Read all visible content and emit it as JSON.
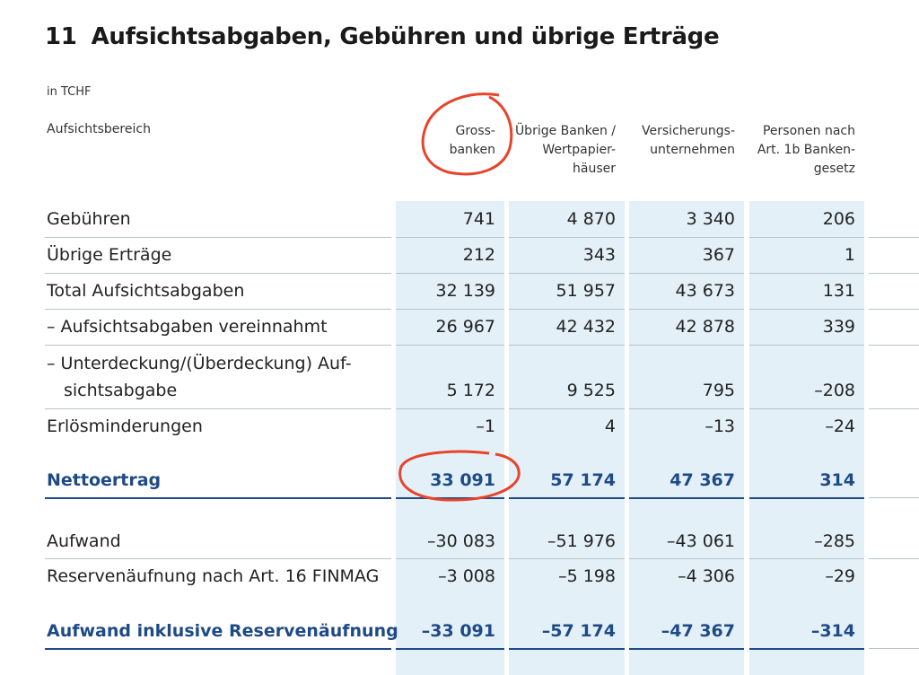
{
  "title": {
    "number": "11",
    "text": "Aufsichtsabgaben, Gebühren und übrige Erträge"
  },
  "unit": "in TCHF",
  "row_header_label": "Aufsichtsbereich",
  "columns": [
    "Gross-\nbanken",
    "Übrige Banken /\nWertpapier-\nhäuser",
    "Versicherungs-\nunternehmen",
    "Personen nach\nArt. 1b Banken-\ngesetz"
  ],
  "rows": [
    {
      "label": "Gebühren",
      "values": [
        "741",
        "4 870",
        "3 340",
        "206"
      ]
    },
    {
      "label": "Übrige Erträge",
      "values": [
        "212",
        "343",
        "367",
        "1"
      ]
    },
    {
      "label": "Total Aufsichtsabgaben",
      "values": [
        "32 139",
        "51 957",
        "43 673",
        "131"
      ]
    },
    {
      "label": "–  Aufsichtsabgaben vereinnahmt",
      "values": [
        "26 967",
        "42 432",
        "42 878",
        "339"
      ]
    },
    {
      "label": "–  Unterdeckung/(Überdeckung) Auf-",
      "label2": "sichtsabgabe",
      "values": [
        "5 172",
        "9 525",
        "795",
        "–208"
      ]
    },
    {
      "label": "Erlösminderungen",
      "values": [
        "–1",
        "4",
        "–13",
        "–24"
      ]
    },
    {
      "label": "Nettoertrag",
      "values": [
        "33 091",
        "57 174",
        "47 367",
        "314"
      ],
      "bold": true
    },
    {
      "label": "Aufwand",
      "values": [
        "–30 083",
        "–51 976",
        "–43 061",
        "–285"
      ]
    },
    {
      "label": "Reservenäufnung nach Art. 16 FINMAG",
      "values": [
        "–3 008",
        "–5 198",
        "–4 306",
        "–29"
      ]
    },
    {
      "label": "Aufwand inklusive Reservenäufnung",
      "values": [
        "–33 091",
        "–57 174",
        "–47 367",
        "–314"
      ],
      "bold": true
    }
  ],
  "colors": {
    "accent": "#1e4a86",
    "column_band": "#e3f0f7",
    "annotation": "#e8432b"
  }
}
